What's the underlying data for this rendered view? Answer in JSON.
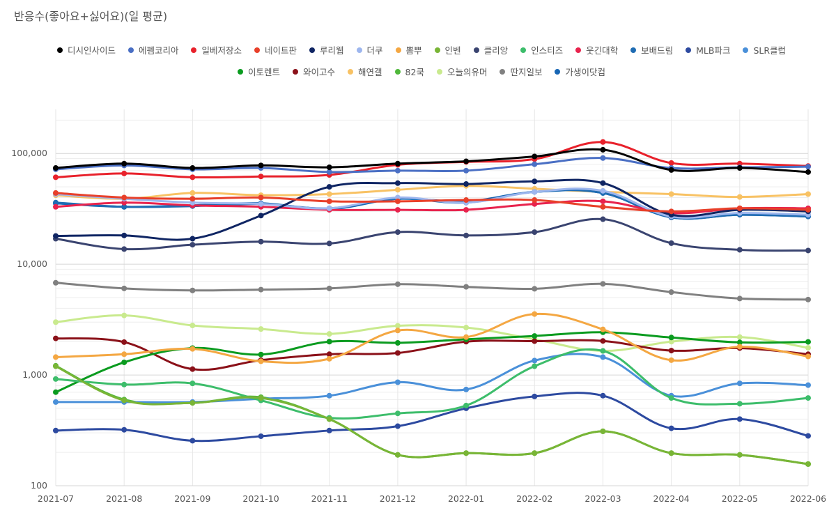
{
  "chart_data": {
    "type": "line",
    "title": "반응수(좋아요+싫어요)(일 평균)",
    "xlabel": "",
    "ylabel": "",
    "yscale": "log",
    "ylim": [
      100,
      250000
    ],
    "yticks": [
      100,
      1000,
      10000,
      100000
    ],
    "ytick_labels": [
      "100",
      "1,000",
      "10,000",
      "100,000"
    ],
    "grid": true,
    "legend_position": "top-center",
    "categories": [
      "2021-07",
      "2021-08",
      "2021-09",
      "2021-10",
      "2021-11",
      "2021-12",
      "2022-01",
      "2022-02",
      "2022-03",
      "2022-04",
      "2022-05",
      "2022-06"
    ],
    "series": [
      {
        "name": "디시인사이드",
        "color": "#000000",
        "values": [
          74000,
          81000,
          74000,
          78000,
          75000,
          81000,
          85000,
          94000,
          108000,
          71000,
          74000,
          68000
        ]
      },
      {
        "name": "에펨코리아",
        "color": "#4a6fc4",
        "values": [
          72000,
          78000,
          72000,
          74000,
          68000,
          70000,
          70000,
          80000,
          91000,
          74000,
          75000,
          76000
        ]
      },
      {
        "name": "일베저장소",
        "color": "#e8212b",
        "values": [
          61000,
          66000,
          61000,
          62000,
          64000,
          79000,
          84000,
          89000,
          127000,
          82000,
          81000,
          77000
        ]
      },
      {
        "name": "네이트판",
        "color": "#e8402a",
        "values": [
          44000,
          40000,
          39000,
          40000,
          37000,
          37000,
          38000,
          38000,
          33000,
          30000,
          32000,
          31000
        ]
      },
      {
        "name": "루리웹",
        "color": "#0f2563",
        "values": [
          18000,
          18200,
          17000,
          27500,
          50000,
          54000,
          53000,
          56000,
          54000,
          28000,
          31000,
          30000
        ]
      },
      {
        "name": "더쿠",
        "color": "#9db6ee",
        "values": [
          43000,
          39000,
          36000,
          35000,
          32000,
          40000,
          36000,
          45000,
          46000,
          27000,
          29000,
          28000
        ]
      },
      {
        "name": "뽐뿌",
        "color": "#f4a742",
        "values": [
          1450,
          1540,
          1720,
          1330,
          1400,
          2520,
          2200,
          3550,
          2580,
          1360,
          1800,
          1470
        ]
      },
      {
        "name": "인벤",
        "color": "#79b536",
        "values": [
          1200,
          590,
          560,
          620,
          400,
          190,
          197,
          197,
          310,
          197,
          190,
          157
        ]
      },
      {
        "name": "클리앙",
        "color": "#3a4470",
        "values": [
          17000,
          13700,
          15000,
          16000,
          15400,
          19500,
          18200,
          19500,
          25500,
          15500,
          13500,
          13300
        ]
      },
      {
        "name": "인스티즈",
        "color": "#3dbd6b",
        "values": [
          920,
          820,
          840,
          590,
          410,
          450,
          530,
          1200,
          1650,
          620,
          550,
          620
        ]
      },
      {
        "name": "웃긴대학",
        "color": "#e8234d",
        "values": [
          33000,
          36000,
          34000,
          33000,
          31000,
          31000,
          31000,
          35000,
          37000,
          29000,
          32000,
          32000
        ]
      },
      {
        "name": "보배드림",
        "color": "#1f6cb3",
        "values": [
          36000,
          33000,
          33500,
          35000,
          32000,
          39000,
          36000,
          45000,
          44000,
          26500,
          28000,
          27000
        ]
      },
      {
        "name": "MLB파크",
        "color": "#2d4aa0",
        "values": [
          315,
          320,
          255,
          280,
          315,
          345,
          500,
          640,
          650,
          330,
          400,
          282
        ]
      },
      {
        "name": "SLR클럽",
        "color": "#4a90d9",
        "values": [
          570,
          570,
          570,
          610,
          650,
          860,
          740,
          1350,
          1450,
          650,
          840,
          810
        ]
      },
      {
        "name": "이토렌트",
        "color": "#0a9b1f",
        "values": [
          700,
          1300,
          1750,
          1530,
          2000,
          1950,
          2100,
          2250,
          2430,
          2180,
          1970,
          1990
        ]
      },
      {
        "name": "와이고수",
        "color": "#8b1119",
        "values": [
          2140,
          1980,
          1130,
          1360,
          1540,
          1580,
          2000,
          2020,
          2030,
          1660,
          1750,
          1540
        ]
      },
      {
        "name": "해연갤",
        "color": "#f8c264",
        "values": [
          42000,
          39000,
          44000,
          42000,
          43000,
          47000,
          51000,
          48000,
          45000,
          43000,
          40500,
          43000
        ]
      },
      {
        "name": "82쿡",
        "color": "#4fb83a",
        "values": [
          1210,
          600,
          560,
          630,
          400,
          190,
          197,
          197,
          310,
          197,
          190,
          157
        ]
      },
      {
        "name": "오늘의유머",
        "color": "#c9ea8e",
        "values": [
          3000,
          3450,
          2800,
          2600,
          2350,
          2780,
          2680,
          2100,
          1650,
          2000,
          2200,
          1760
        ]
      },
      {
        "name": "딴지일보",
        "color": "#808080",
        "values": [
          6800,
          6050,
          5800,
          5900,
          6050,
          6600,
          6250,
          6000,
          6650,
          5600,
          4900,
          4800
        ]
      },
      {
        "name": "가생이닷컴",
        "color": "#1766b4",
        "values": [
          35500,
          33000,
          34000,
          35500,
          31500,
          39000,
          37000,
          45000,
          44000,
          26500,
          28000,
          27000
        ]
      }
    ]
  }
}
